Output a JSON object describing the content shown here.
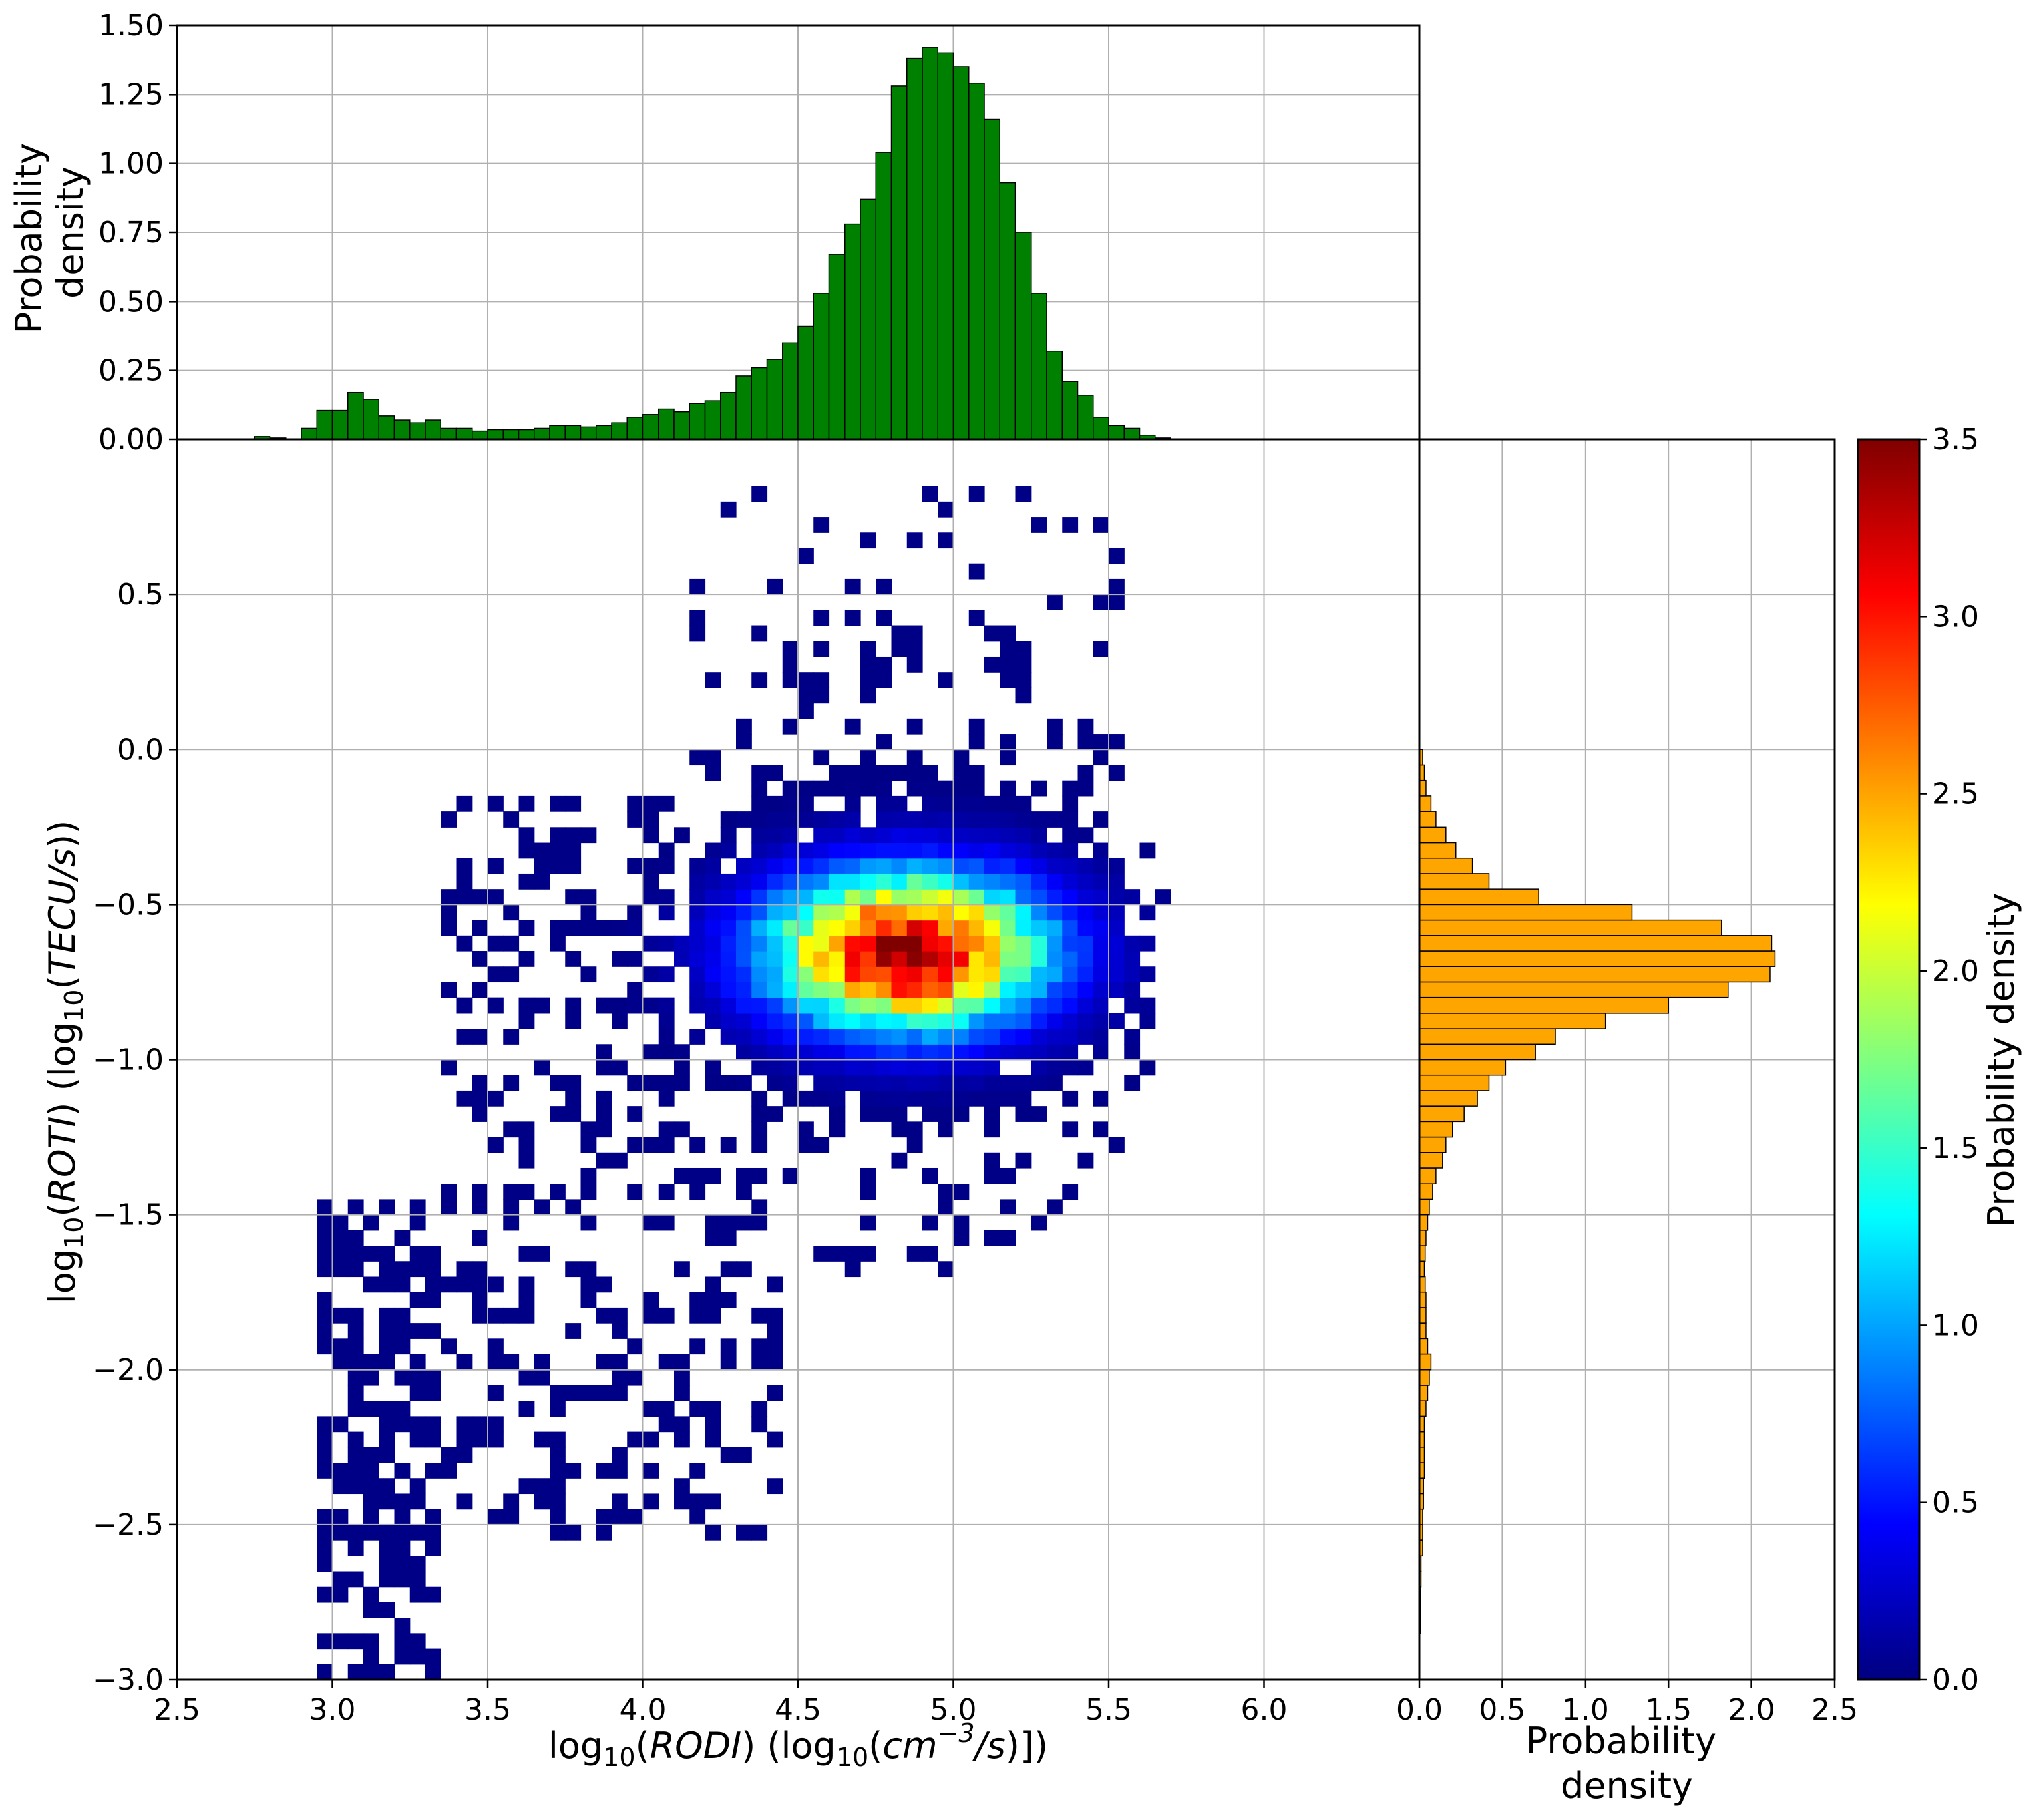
{
  "chart_data": [
    {
      "id": "top_hist",
      "type": "bar",
      "ylabel": "Probability\ndensity",
      "xlim": [
        2.5,
        6.5
      ],
      "ylim": [
        0.0,
        1.5
      ],
      "yticks": [
        0.0,
        0.25,
        0.5,
        0.75,
        1.0,
        1.25,
        1.5
      ],
      "ytick_labels": [
        "0.00",
        "0.25",
        "0.50",
        "0.75",
        "1.00",
        "1.25",
        "1.50"
      ],
      "bar_color": "#008000",
      "bin_start": 2.75,
      "bin_width": 0.05,
      "values": [
        0.01,
        0.005,
        0.0,
        0.04,
        0.105,
        0.105,
        0.17,
        0.145,
        0.085,
        0.07,
        0.06,
        0.07,
        0.04,
        0.04,
        0.03,
        0.035,
        0.035,
        0.035,
        0.04,
        0.05,
        0.05,
        0.045,
        0.05,
        0.06,
        0.08,
        0.09,
        0.11,
        0.1,
        0.13,
        0.14,
        0.17,
        0.23,
        0.26,
        0.29,
        0.35,
        0.41,
        0.53,
        0.67,
        0.78,
        0.87,
        1.04,
        1.28,
        1.38,
        1.42,
        1.4,
        1.35,
        1.29,
        1.16,
        0.93,
        0.75,
        0.53,
        0.32,
        0.21,
        0.16,
        0.08,
        0.05,
        0.04,
        0.015,
        0.005,
        0.0,
        0.0,
        0.0,
        0.0
      ]
    },
    {
      "id": "main_heatmap",
      "type": "heatmap",
      "xlabel": "log10(RODI) (log10(cm^-3/s)])",
      "ylabel": "log10(ROTI) (log10(TECU/s))",
      "xlim": [
        2.5,
        6.5
      ],
      "ylim": [
        -3.0,
        1.0
      ],
      "xticks": [
        2.5,
        3.0,
        3.5,
        4.0,
        4.5,
        5.0,
        5.5,
        6.0
      ],
      "xtick_labels": [
        "2.5",
        "3.0",
        "3.5",
        "4.0",
        "4.5",
        "5.0",
        "5.5",
        "6.0"
      ],
      "yticks": [
        -3.0,
        -2.5,
        -2.0,
        -1.5,
        -1.0,
        -0.5,
        0.0,
        0.5
      ],
      "ytick_labels": [
        "−3.0",
        "−2.5",
        "−2.0",
        "−1.5",
        "−1.0",
        "−0.5",
        "0.0",
        "0.5"
      ],
      "bin_size": [
        0.05,
        0.05
      ],
      "density_peak": {
        "x": 4.85,
        "y": -0.65,
        "value": 3.5,
        "sigma_x": 0.3,
        "sigma_y": 0.17
      },
      "secondary_cluster": {
        "x_range": [
          2.9,
          3.3
        ],
        "y_range": [
          -3.0,
          -1.5
        ]
      },
      "cmap": "jet",
      "colorbar": {
        "label": "Probability density",
        "range": [
          0.0,
          3.5
        ],
        "ticks": [
          0.0,
          0.5,
          1.0,
          1.5,
          2.0,
          2.5,
          3.0,
          3.5
        ],
        "tick_labels": [
          "0.0",
          "0.5",
          "1.0",
          "1.5",
          "2.0",
          "2.5",
          "3.0",
          "3.5"
        ]
      },
      "grid": true
    },
    {
      "id": "right_hist",
      "type": "bar",
      "orientation": "horizontal",
      "xlabel": "Probability\ndensity",
      "xlim": [
        0.0,
        2.5
      ],
      "ylim": [
        -3.0,
        1.0
      ],
      "xticks": [
        0.0,
        0.5,
        1.0,
        1.5,
        2.0,
        2.5
      ],
      "xtick_labels": [
        "0.0",
        "0.5",
        "1.0",
        "1.5",
        "2.0",
        "2.5"
      ],
      "bar_color": "#FFA500",
      "bin_start": -3.0,
      "bin_width": 0.05,
      "values": [
        0.0,
        0.0,
        0.0,
        0.005,
        0.005,
        0.005,
        0.01,
        0.01,
        0.02,
        0.02,
        0.02,
        0.025,
        0.025,
        0.03,
        0.03,
        0.03,
        0.03,
        0.04,
        0.05,
        0.06,
        0.07,
        0.05,
        0.04,
        0.04,
        0.04,
        0.035,
        0.03,
        0.035,
        0.04,
        0.05,
        0.06,
        0.08,
        0.1,
        0.14,
        0.16,
        0.2,
        0.27,
        0.35,
        0.42,
        0.52,
        0.7,
        0.82,
        1.12,
        1.5,
        1.86,
        2.11,
        2.14,
        2.12,
        1.82,
        1.28,
        0.72,
        0.42,
        0.32,
        0.22,
        0.16,
        0.1,
        0.07,
        0.04,
        0.03,
        0.02,
        0.0,
        0.0,
        0.0,
        0.0,
        0.0,
        0.0,
        0.0,
        0.0,
        0.0,
        0.0,
        0.0,
        0.0,
        0.0,
        0.0,
        0.0,
        0.0,
        0.0,
        0.0,
        0.0,
        0.0
      ]
    }
  ]
}
